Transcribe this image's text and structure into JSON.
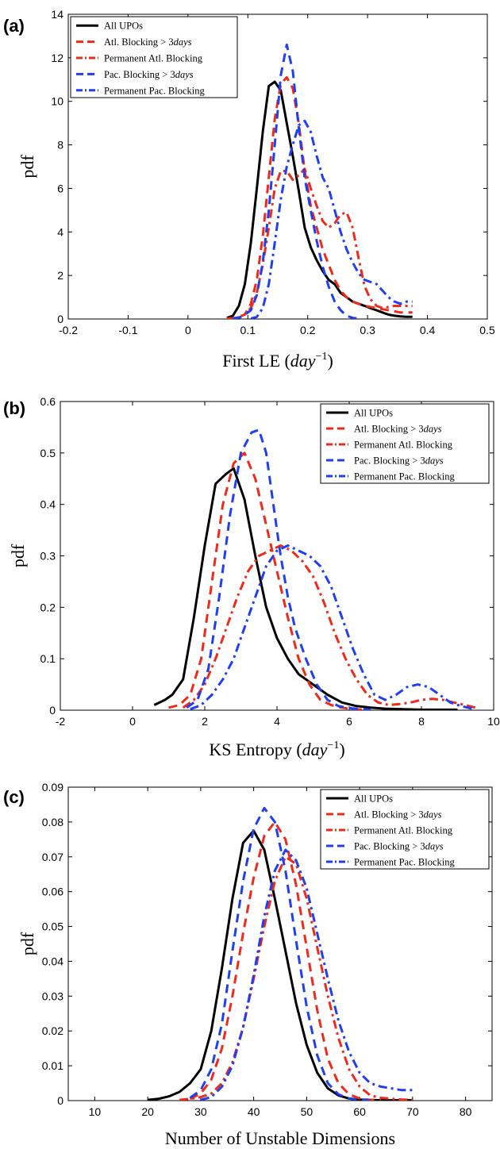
{
  "colors": {
    "all": "#000000",
    "atl": "#ee2a1c",
    "pac": "#1f3ff0"
  },
  "chart_data": [
    {
      "type": "line",
      "panel": "(a)",
      "xlabel": "First LE",
      "xunit": "day",
      "xunit_exp": "−1",
      "ylabel": "pdf",
      "xlim": [
        -0.2,
        0.5
      ],
      "ylim": [
        0,
        14
      ],
      "xticks": [
        "-0.2",
        "-0.1",
        "0",
        "0.1",
        "0.2",
        "0.3",
        "0.4",
        "0.5"
      ],
      "yticks": [
        "0",
        "2",
        "4",
        "6",
        "8",
        "10",
        "12",
        "14"
      ],
      "legend_position": "top-left",
      "series": [
        {
          "name": "All UPOs",
          "style": "solid",
          "color": "all",
          "x": [
            0.065,
            0.075,
            0.085,
            0.095,
            0.105,
            0.115,
            0.125,
            0.135,
            0.145,
            0.155,
            0.165,
            0.175,
            0.185,
            0.195,
            0.205,
            0.215,
            0.225,
            0.235,
            0.245,
            0.255,
            0.265,
            0.275,
            0.285,
            0.295,
            0.305,
            0.315,
            0.325,
            0.335,
            0.345,
            0.355,
            0.365,
            0.375
          ],
          "y": [
            0.05,
            0.15,
            0.6,
            1.6,
            3.5,
            6.0,
            8.6,
            10.7,
            10.9,
            10.5,
            9.0,
            7.5,
            5.9,
            4.2,
            3.3,
            2.7,
            2.2,
            1.8,
            1.6,
            1.2,
            1.0,
            0.8,
            0.7,
            0.6,
            0.5,
            0.4,
            0.3,
            0.2,
            0.15,
            0.12,
            0.1,
            0.1
          ]
        },
        {
          "name": "Atl. Blocking > 3days",
          "style": "dashed",
          "color": "atl",
          "x": [
            0.065,
            0.08,
            0.095,
            0.105,
            0.115,
            0.125,
            0.135,
            0.145,
            0.155,
            0.165,
            0.175,
            0.185,
            0.195,
            0.205,
            0.215,
            0.225,
            0.235,
            0.245,
            0.255,
            0.265,
            0.275,
            0.285,
            0.295,
            0.305,
            0.315,
            0.325,
            0.335,
            0.345,
            0.355,
            0.365,
            0.375
          ],
          "y": [
            0.02,
            0.05,
            0.2,
            0.7,
            1.8,
            3.8,
            6.5,
            9.2,
            10.8,
            11.1,
            10.6,
            9.0,
            6.8,
            5.2,
            4.2,
            3.2,
            2.5,
            1.8,
            1.3,
            1.0,
            0.8,
            0.7,
            0.6,
            0.55,
            0.5,
            0.45,
            0.4,
            0.35,
            0.3,
            0.3,
            0.3
          ]
        },
        {
          "name": "Permanent Atl. Blocking",
          "style": "dashdot",
          "color": "atl",
          "x": [
            0.075,
            0.09,
            0.105,
            0.115,
            0.125,
            0.135,
            0.145,
            0.155,
            0.165,
            0.175,
            0.185,
            0.195,
            0.205,
            0.215,
            0.225,
            0.235,
            0.245,
            0.255,
            0.265,
            0.275,
            0.285,
            0.295,
            0.305,
            0.315,
            0.325,
            0.335,
            0.345,
            0.355,
            0.365,
            0.375
          ],
          "y": [
            0.02,
            0.1,
            0.5,
            1.2,
            2.5,
            4.2,
            6.0,
            6.8,
            6.8,
            6.4,
            6.6,
            6.9,
            6.0,
            5.2,
            4.5,
            4.2,
            4.4,
            4.8,
            4.9,
            4.2,
            2.8,
            1.5,
            0.9,
            0.6,
            0.5,
            0.55,
            0.6,
            0.6,
            0.6,
            0.6
          ]
        },
        {
          "name": "Pac. Blocking > 3days",
          "style": "dashed",
          "color": "pac",
          "x": [
            0.075,
            0.09,
            0.105,
            0.115,
            0.125,
            0.135,
            0.145,
            0.155,
            0.165,
            0.175,
            0.185,
            0.195,
            0.205,
            0.215,
            0.225,
            0.235,
            0.245,
            0.255,
            0.265,
            0.275,
            0.285
          ],
          "y": [
            0.02,
            0.1,
            0.4,
            1.1,
            2.6,
            5.0,
            8.0,
            11.2,
            12.6,
            11.4,
            8.8,
            6.5,
            5.0,
            3.6,
            2.4,
            1.5,
            0.8,
            0.4,
            0.15,
            0.05,
            0.02
          ]
        },
        {
          "name": "Permanent Pac. Blocking",
          "style": "dashdot",
          "color": "pac",
          "x": [
            0.105,
            0.115,
            0.125,
            0.135,
            0.145,
            0.155,
            0.165,
            0.175,
            0.185,
            0.195,
            0.205,
            0.215,
            0.225,
            0.235,
            0.245,
            0.255,
            0.265,
            0.275,
            0.285,
            0.295,
            0.305,
            0.315,
            0.325,
            0.335,
            0.345,
            0.355,
            0.365,
            0.375
          ],
          "y": [
            0.02,
            0.1,
            0.5,
            1.6,
            3.5,
            5.5,
            7.0,
            8.0,
            8.9,
            9.1,
            8.6,
            7.5,
            6.5,
            6.0,
            5.0,
            4.0,
            3.2,
            2.6,
            2.1,
            1.8,
            1.7,
            1.6,
            1.3,
            1.0,
            0.8,
            0.7,
            0.8,
            0.8
          ]
        }
      ]
    },
    {
      "type": "line",
      "panel": "(b)",
      "xlabel": "KS Entropy",
      "xunit": "day",
      "xunit_exp": "−1",
      "ylabel": "pdf",
      "xlim": [
        -2,
        10
      ],
      "ylim": [
        0,
        0.6
      ],
      "xticks": [
        "-2",
        "0",
        "2",
        "4",
        "6",
        "8",
        "10"
      ],
      "yticks": [
        "0",
        "0.1",
        "0.2",
        "0.3",
        "0.4",
        "0.5",
        "0.6"
      ],
      "legend_position": "top-right",
      "series": [
        {
          "name": "All UPOs",
          "style": "solid",
          "color": "all",
          "x": [
            0.6,
            0.9,
            1.1,
            1.4,
            1.7,
            2.0,
            2.3,
            2.6,
            2.8,
            3.1,
            3.4,
            3.7,
            4.0,
            4.3,
            4.6,
            5.0,
            5.4,
            5.8,
            6.2,
            6.6,
            7.0,
            7.5,
            8.0,
            8.5,
            9.0
          ],
          "y": [
            0.01,
            0.02,
            0.03,
            0.06,
            0.18,
            0.32,
            0.44,
            0.46,
            0.47,
            0.41,
            0.3,
            0.2,
            0.14,
            0.1,
            0.07,
            0.05,
            0.03,
            0.015,
            0.008,
            0.005,
            0.003,
            0.002,
            0.001,
            0.001,
            0.001
          ]
        },
        {
          "name": "Atl. Blocking > 3days",
          "style": "dashed",
          "color": "atl",
          "x": [
            1.0,
            1.3,
            1.6,
            1.9,
            2.2,
            2.5,
            2.8,
            3.1,
            3.4,
            3.7,
            4.0,
            4.3,
            4.6,
            4.9,
            5.2,
            5.5,
            5.8,
            6.1,
            6.4
          ],
          "y": [
            0.005,
            0.01,
            0.03,
            0.1,
            0.25,
            0.4,
            0.48,
            0.5,
            0.45,
            0.36,
            0.27,
            0.18,
            0.1,
            0.05,
            0.02,
            0.01,
            0.005,
            0.002,
            0.001
          ]
        },
        {
          "name": "Permanent Atl. Blocking",
          "style": "dashdot",
          "color": "atl",
          "x": [
            1.4,
            1.7,
            2.0,
            2.3,
            2.6,
            2.9,
            3.2,
            3.5,
            3.8,
            4.1,
            4.4,
            4.7,
            5.0,
            5.3,
            5.6,
            5.9,
            6.2,
            6.5,
            6.8,
            7.1,
            7.4,
            7.7,
            8.0,
            8.3,
            8.6,
            8.9,
            9.2,
            9.5
          ],
          "y": [
            0.005,
            0.02,
            0.05,
            0.1,
            0.16,
            0.22,
            0.27,
            0.3,
            0.31,
            0.32,
            0.31,
            0.29,
            0.26,
            0.21,
            0.15,
            0.1,
            0.06,
            0.03,
            0.015,
            0.01,
            0.012,
            0.015,
            0.02,
            0.022,
            0.02,
            0.015,
            0.01,
            0.005
          ]
        },
        {
          "name": "Pac. Blocking > 3days",
          "style": "dashed",
          "color": "pac",
          "x": [
            1.5,
            1.8,
            2.1,
            2.4,
            2.7,
            3.0,
            3.3,
            3.5,
            3.7,
            3.9,
            4.1,
            4.3,
            4.5,
            4.8,
            5.1,
            5.4,
            5.7,
            6.0,
            6.3,
            6.6
          ],
          "y": [
            0.005,
            0.02,
            0.08,
            0.22,
            0.38,
            0.5,
            0.54,
            0.545,
            0.5,
            0.4,
            0.3,
            0.22,
            0.16,
            0.1,
            0.05,
            0.02,
            0.008,
            0.004,
            0.002,
            0.001
          ]
        },
        {
          "name": "Permanent Pac. Blocking",
          "style": "dashdot",
          "color": "pac",
          "x": [
            1.6,
            1.9,
            2.2,
            2.5,
            2.8,
            3.1,
            3.4,
            3.7,
            4.0,
            4.3,
            4.6,
            4.9,
            5.2,
            5.5,
            5.8,
            6.1,
            6.4,
            6.7,
            7.0,
            7.3,
            7.6,
            7.9,
            8.2,
            8.5,
            8.8,
            9.1,
            9.4
          ],
          "y": [
            0.002,
            0.01,
            0.03,
            0.06,
            0.1,
            0.16,
            0.22,
            0.28,
            0.31,
            0.32,
            0.31,
            0.3,
            0.28,
            0.24,
            0.18,
            0.12,
            0.07,
            0.03,
            0.02,
            0.03,
            0.045,
            0.05,
            0.045,
            0.03,
            0.015,
            0.008,
            0.003
          ]
        }
      ]
    },
    {
      "type": "line",
      "panel": "(c)",
      "xlabel": "Number of Unstable Dimensions",
      "xunit": "",
      "xunit_exp": "",
      "ylabel": "pdf",
      "xlim": [
        5,
        85
      ],
      "ylim": [
        0,
        0.09
      ],
      "xticks": [
        "10",
        "20",
        "30",
        "40",
        "50",
        "60",
        "70",
        "80"
      ],
      "yticks": [
        "0",
        "0.01",
        "0.02",
        "0.03",
        "0.04",
        "0.05",
        "0.06",
        "0.07",
        "0.08",
        "0.09"
      ],
      "legend_position": "top-right",
      "series": [
        {
          "name": "All UPOs",
          "style": "solid",
          "color": "all",
          "x": [
            20,
            22,
            24,
            26,
            28,
            30,
            32,
            34,
            36,
            38,
            40,
            42,
            44,
            46,
            48,
            50,
            52,
            54,
            56,
            58,
            60,
            62,
            64,
            66,
            68,
            70
          ],
          "y": [
            0.0002,
            0.0005,
            0.0012,
            0.0025,
            0.005,
            0.009,
            0.02,
            0.038,
            0.058,
            0.074,
            0.0775,
            0.072,
            0.058,
            0.043,
            0.028,
            0.016,
            0.008,
            0.0035,
            0.0015,
            0.0006,
            0.0003,
            0.0002,
            0.0001,
            0.0001,
            0.0001,
            0.0001
          ]
        },
        {
          "name": "Atl. Blocking > 3days",
          "style": "dashed",
          "color": "atl",
          "x": [
            28,
            30,
            32,
            34,
            36,
            38,
            40,
            42,
            44,
            46,
            48,
            50,
            52,
            54,
            56,
            58,
            60,
            62,
            64
          ],
          "y": [
            0.0005,
            0.002,
            0.006,
            0.015,
            0.03,
            0.048,
            0.064,
            0.076,
            0.08,
            0.075,
            0.062,
            0.044,
            0.026,
            0.012,
            0.005,
            0.0018,
            0.0006,
            0.0002,
            0.0001
          ]
        },
        {
          "name": "Permanent Atl. Blocking",
          "style": "dashdot",
          "color": "atl",
          "x": [
            26,
            28,
            30,
            32,
            34,
            36,
            38,
            40,
            42,
            44,
            46,
            48,
            50,
            52,
            54,
            56,
            58,
            60,
            62,
            64,
            66,
            68,
            70
          ],
          "y": [
            0.0002,
            0.0005,
            0.001,
            0.002,
            0.005,
            0.011,
            0.021,
            0.035,
            0.05,
            0.063,
            0.07,
            0.068,
            0.058,
            0.044,
            0.03,
            0.018,
            0.009,
            0.004,
            0.0015,
            0.0008,
            0.0005,
            0.0003,
            0.0002
          ]
        },
        {
          "name": "Pac. Blocking > 3days",
          "style": "dashed",
          "color": "pac",
          "x": [
            28,
            30,
            32,
            34,
            36,
            38,
            40,
            42,
            44,
            46,
            48,
            50,
            52,
            54,
            56,
            58,
            60,
            62
          ],
          "y": [
            0.0008,
            0.003,
            0.009,
            0.022,
            0.043,
            0.063,
            0.078,
            0.084,
            0.08,
            0.066,
            0.046,
            0.027,
            0.013,
            0.005,
            0.0018,
            0.0006,
            0.0002,
            0.0001
          ]
        },
        {
          "name": "Permanent Pac. Blocking",
          "style": "dashdot",
          "color": "pac",
          "x": [
            30,
            32,
            34,
            36,
            38,
            40,
            42,
            44,
            46,
            48,
            50,
            52,
            54,
            56,
            58,
            60,
            62,
            64,
            66,
            68,
            70
          ],
          "y": [
            0.0002,
            0.001,
            0.004,
            0.01,
            0.021,
            0.036,
            0.053,
            0.066,
            0.072,
            0.069,
            0.061,
            0.048,
            0.035,
            0.023,
            0.014,
            0.008,
            0.005,
            0.004,
            0.0035,
            0.003,
            0.003
          ]
        }
      ]
    }
  ]
}
